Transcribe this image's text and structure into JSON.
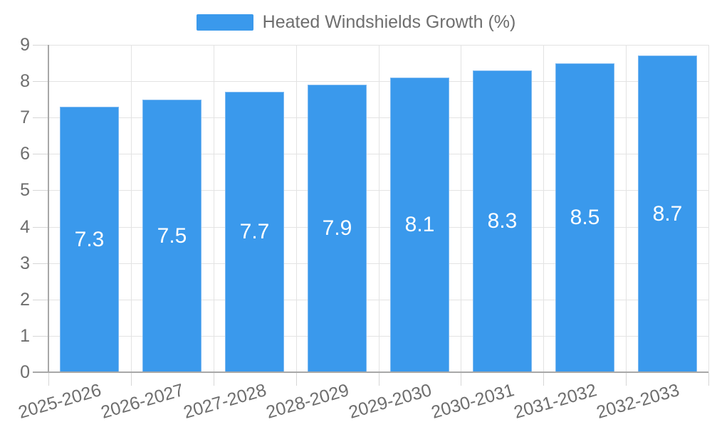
{
  "legend": {
    "label": "Heated Windshields Growth (%)"
  },
  "colors": {
    "bar": "#3a99ec",
    "barBorder": "#7db9f1",
    "grid": "#e3e3e3",
    "axis": "#a8a8a8",
    "tick": "#d6d6d6",
    "text": "#6e6e6e",
    "barLabel": "#ffffff"
  },
  "chart_data": {
    "type": "bar",
    "title": "Heated Windshields Growth (%)",
    "categories": [
      "2025-2026",
      "2026-2027",
      "2027-2028",
      "2028-2029",
      "2029-2030",
      "2030-2031",
      "2031-2032",
      "2032-2033"
    ],
    "values": [
      7.3,
      7.5,
      7.7,
      7.9,
      8.1,
      8.3,
      8.5,
      8.7
    ],
    "bar_labels": [
      "7.3",
      "7.5",
      "7.7",
      "7.9",
      "8.1",
      "8.3",
      "8.5",
      "8.7"
    ],
    "xlabel": "",
    "ylabel": "",
    "ylim": [
      0,
      9
    ],
    "ytick_step": 1,
    "grid": true,
    "legend_position": "top",
    "x_label_rotation_deg": -16
  }
}
